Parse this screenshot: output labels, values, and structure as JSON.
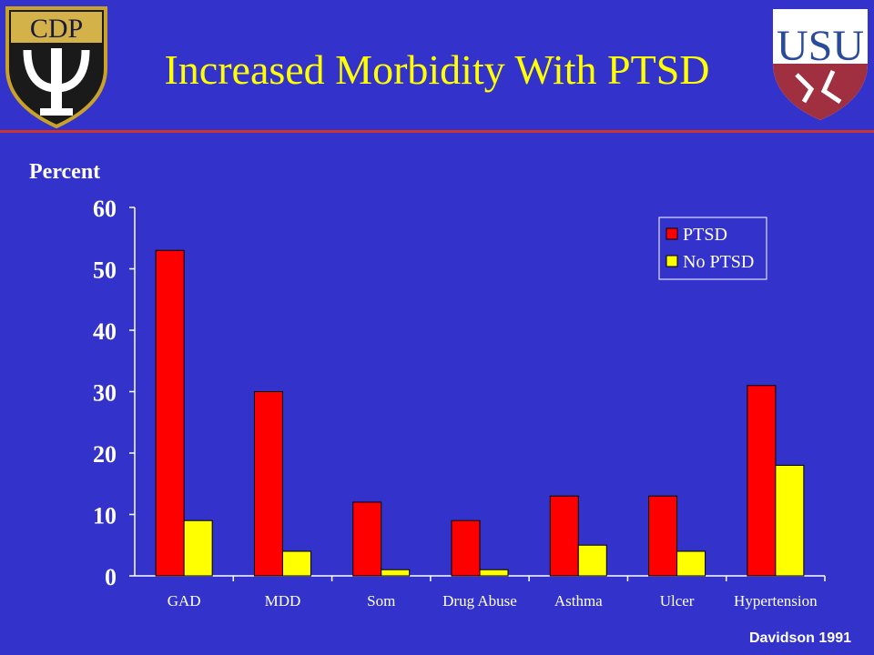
{
  "slide": {
    "title": "Increased Morbidity With PTSD",
    "source": "Davidson 1991",
    "colors": {
      "background": "#3333cc",
      "title": "#ffff00",
      "rule": "#cc3333",
      "text": "#ffffff"
    },
    "logos": {
      "left": {
        "icon": "cdp-psi-crest-icon",
        "text": "CDP"
      },
      "right": {
        "icon": "usu-shield-icon",
        "text": "USU"
      }
    }
  },
  "chart_data": {
    "type": "bar",
    "title": "",
    "ylabel": "Percent",
    "xlabel": "",
    "ylim": [
      0,
      60
    ],
    "yticks": [
      0,
      10,
      20,
      30,
      40,
      50,
      60
    ],
    "categories": [
      "GAD",
      "MDD",
      "Som",
      "Drug Abuse",
      "Asthma",
      "Ulcer",
      "Hypertension"
    ],
    "series": [
      {
        "name": "PTSD",
        "color": "#ff0000",
        "values": [
          53,
          30,
          12,
          9,
          13,
          13,
          31
        ]
      },
      {
        "name": "No PTSD",
        "color": "#ffff00",
        "values": [
          9,
          4,
          1,
          1,
          5,
          4,
          18
        ]
      }
    ],
    "legend": "top-right",
    "grid": false
  }
}
